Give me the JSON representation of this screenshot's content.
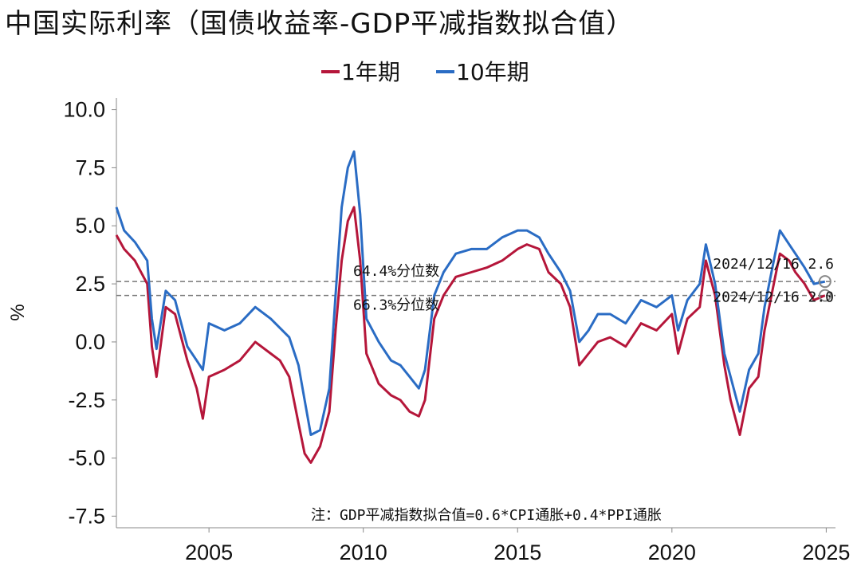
{
  "chart_data": {
    "type": "line",
    "title": "中国实际利率（国债收益率-GDP平减指数拟合值）",
    "ylabel": "%",
    "xlabel": "",
    "xlim": [
      2002.0,
      2025.3
    ],
    "ylim": [
      -8.0,
      10.5
    ],
    "x_ticks": [
      2005,
      2010,
      2015,
      2020,
      2025
    ],
    "y_ticks": [
      10.0,
      7.5,
      5.0,
      2.5,
      0.0,
      -2.5,
      -5.0,
      -7.5
    ],
    "x_tick_labels": [
      "2005",
      "2010",
      "2015",
      "2020",
      "2025"
    ],
    "y_tick_labels": [
      "10.0",
      "7.5",
      "5.0",
      "2.5",
      "0.0",
      "-2.5",
      "-5.0",
      "-7.5"
    ],
    "legend": {
      "placement": "top-center"
    },
    "grid": false,
    "series": [
      {
        "name": "1年期",
        "color": "#b5163a",
        "x": [
          2002.0,
          2002.25,
          2002.6,
          2003.0,
          2003.15,
          2003.3,
          2003.6,
          2003.9,
          2004.3,
          2004.6,
          2004.8,
          2005.0,
          2005.5,
          2006.0,
          2006.5,
          2007.0,
          2007.3,
          2007.6,
          2007.9,
          2008.1,
          2008.3,
          2008.6,
          2008.9,
          2009.1,
          2009.3,
          2009.5,
          2009.7,
          2009.9,
          2010.1,
          2010.5,
          2010.9,
          2011.2,
          2011.5,
          2011.8,
          2012.0,
          2012.3,
          2012.6,
          2013.0,
          2013.5,
          2014.0,
          2014.5,
          2015.0,
          2015.3,
          2015.7,
          2016.0,
          2016.4,
          2016.7,
          2017.0,
          2017.3,
          2017.6,
          2018.0,
          2018.5,
          2019.0,
          2019.5,
          2020.0,
          2020.2,
          2020.5,
          2020.9,
          2021.1,
          2021.4,
          2021.7,
          2021.9,
          2022.2,
          2022.5,
          2022.8,
          2023.0,
          2023.3,
          2023.5,
          2023.8,
          2024.0,
          2024.3,
          2024.6,
          2024.96
        ],
        "values": [
          4.6,
          4.0,
          3.5,
          2.5,
          -0.2,
          -1.5,
          1.5,
          1.2,
          -0.8,
          -2.0,
          -3.3,
          -1.5,
          -1.2,
          -0.8,
          0.0,
          -0.5,
          -0.8,
          -1.5,
          -3.5,
          -4.8,
          -5.2,
          -4.5,
          -3.0,
          0.5,
          3.5,
          5.2,
          5.8,
          3.5,
          -0.5,
          -1.8,
          -2.3,
          -2.5,
          -3.0,
          -3.2,
          -2.5,
          1.0,
          2.0,
          2.8,
          3.0,
          3.2,
          3.5,
          4.0,
          4.2,
          4.0,
          3.0,
          2.5,
          1.5,
          -1.0,
          -0.5,
          0.0,
          0.2,
          -0.2,
          0.8,
          0.5,
          1.2,
          -0.5,
          1.0,
          1.5,
          3.5,
          2.0,
          -1.0,
          -2.5,
          -4.0,
          -2.0,
          -1.5,
          0.5,
          2.5,
          3.8,
          3.5,
          3.0,
          2.5,
          1.8,
          2.0
        ]
      },
      {
        "name": "10年期",
        "color": "#2a6cc4",
        "x": [
          2002.0,
          2002.25,
          2002.6,
          2003.0,
          2003.15,
          2003.3,
          2003.6,
          2003.9,
          2004.3,
          2004.6,
          2004.8,
          2005.0,
          2005.5,
          2006.0,
          2006.5,
          2007.0,
          2007.3,
          2007.6,
          2007.9,
          2008.1,
          2008.3,
          2008.6,
          2008.9,
          2009.1,
          2009.3,
          2009.5,
          2009.7,
          2009.9,
          2010.1,
          2010.5,
          2010.9,
          2011.2,
          2011.5,
          2011.8,
          2012.0,
          2012.3,
          2012.6,
          2013.0,
          2013.5,
          2014.0,
          2014.5,
          2015.0,
          2015.3,
          2015.7,
          2016.0,
          2016.4,
          2016.7,
          2017.0,
          2017.3,
          2017.6,
          2018.0,
          2018.5,
          2019.0,
          2019.5,
          2020.0,
          2020.2,
          2020.5,
          2020.9,
          2021.1,
          2021.4,
          2021.7,
          2021.9,
          2022.2,
          2022.5,
          2022.8,
          2023.0,
          2023.3,
          2023.5,
          2023.8,
          2024.0,
          2024.3,
          2024.6,
          2024.96
        ],
        "values": [
          5.8,
          4.8,
          4.3,
          3.5,
          1.0,
          -0.3,
          2.2,
          1.8,
          -0.2,
          -0.8,
          -1.2,
          0.8,
          0.5,
          0.8,
          1.5,
          1.0,
          0.6,
          0.2,
          -1.0,
          -2.5,
          -4.0,
          -3.8,
          -2.0,
          2.0,
          5.8,
          7.5,
          8.2,
          5.5,
          1.0,
          0.0,
          -0.8,
          -1.0,
          -1.5,
          -2.0,
          -1.2,
          2.0,
          3.0,
          3.8,
          4.0,
          4.0,
          4.5,
          4.8,
          4.8,
          4.5,
          3.8,
          3.0,
          2.2,
          0.0,
          0.5,
          1.2,
          1.2,
          0.8,
          1.8,
          1.5,
          2.0,
          0.5,
          1.8,
          2.5,
          4.2,
          2.5,
          -0.5,
          -1.5,
          -3.0,
          -1.2,
          -0.5,
          1.5,
          3.5,
          4.8,
          4.2,
          3.8,
          3.2,
          2.5,
          2.6
        ]
      }
    ],
    "reference_lines": [
      {
        "label": "64.4%分位数",
        "y": 2.6
      },
      {
        "label": "66.3%分位数",
        "y": 2.0
      }
    ],
    "end_labels": [
      {
        "text": "2024/12/16 2.6",
        "x": 2024.96,
        "y": 2.6
      },
      {
        "text": "2024/12/16 2.0",
        "x": 2024.96,
        "y": 2.0
      }
    ],
    "note": "注：GDP平减指数拟合值=0.6*CPI通胀+0.4*PPI通胀"
  }
}
